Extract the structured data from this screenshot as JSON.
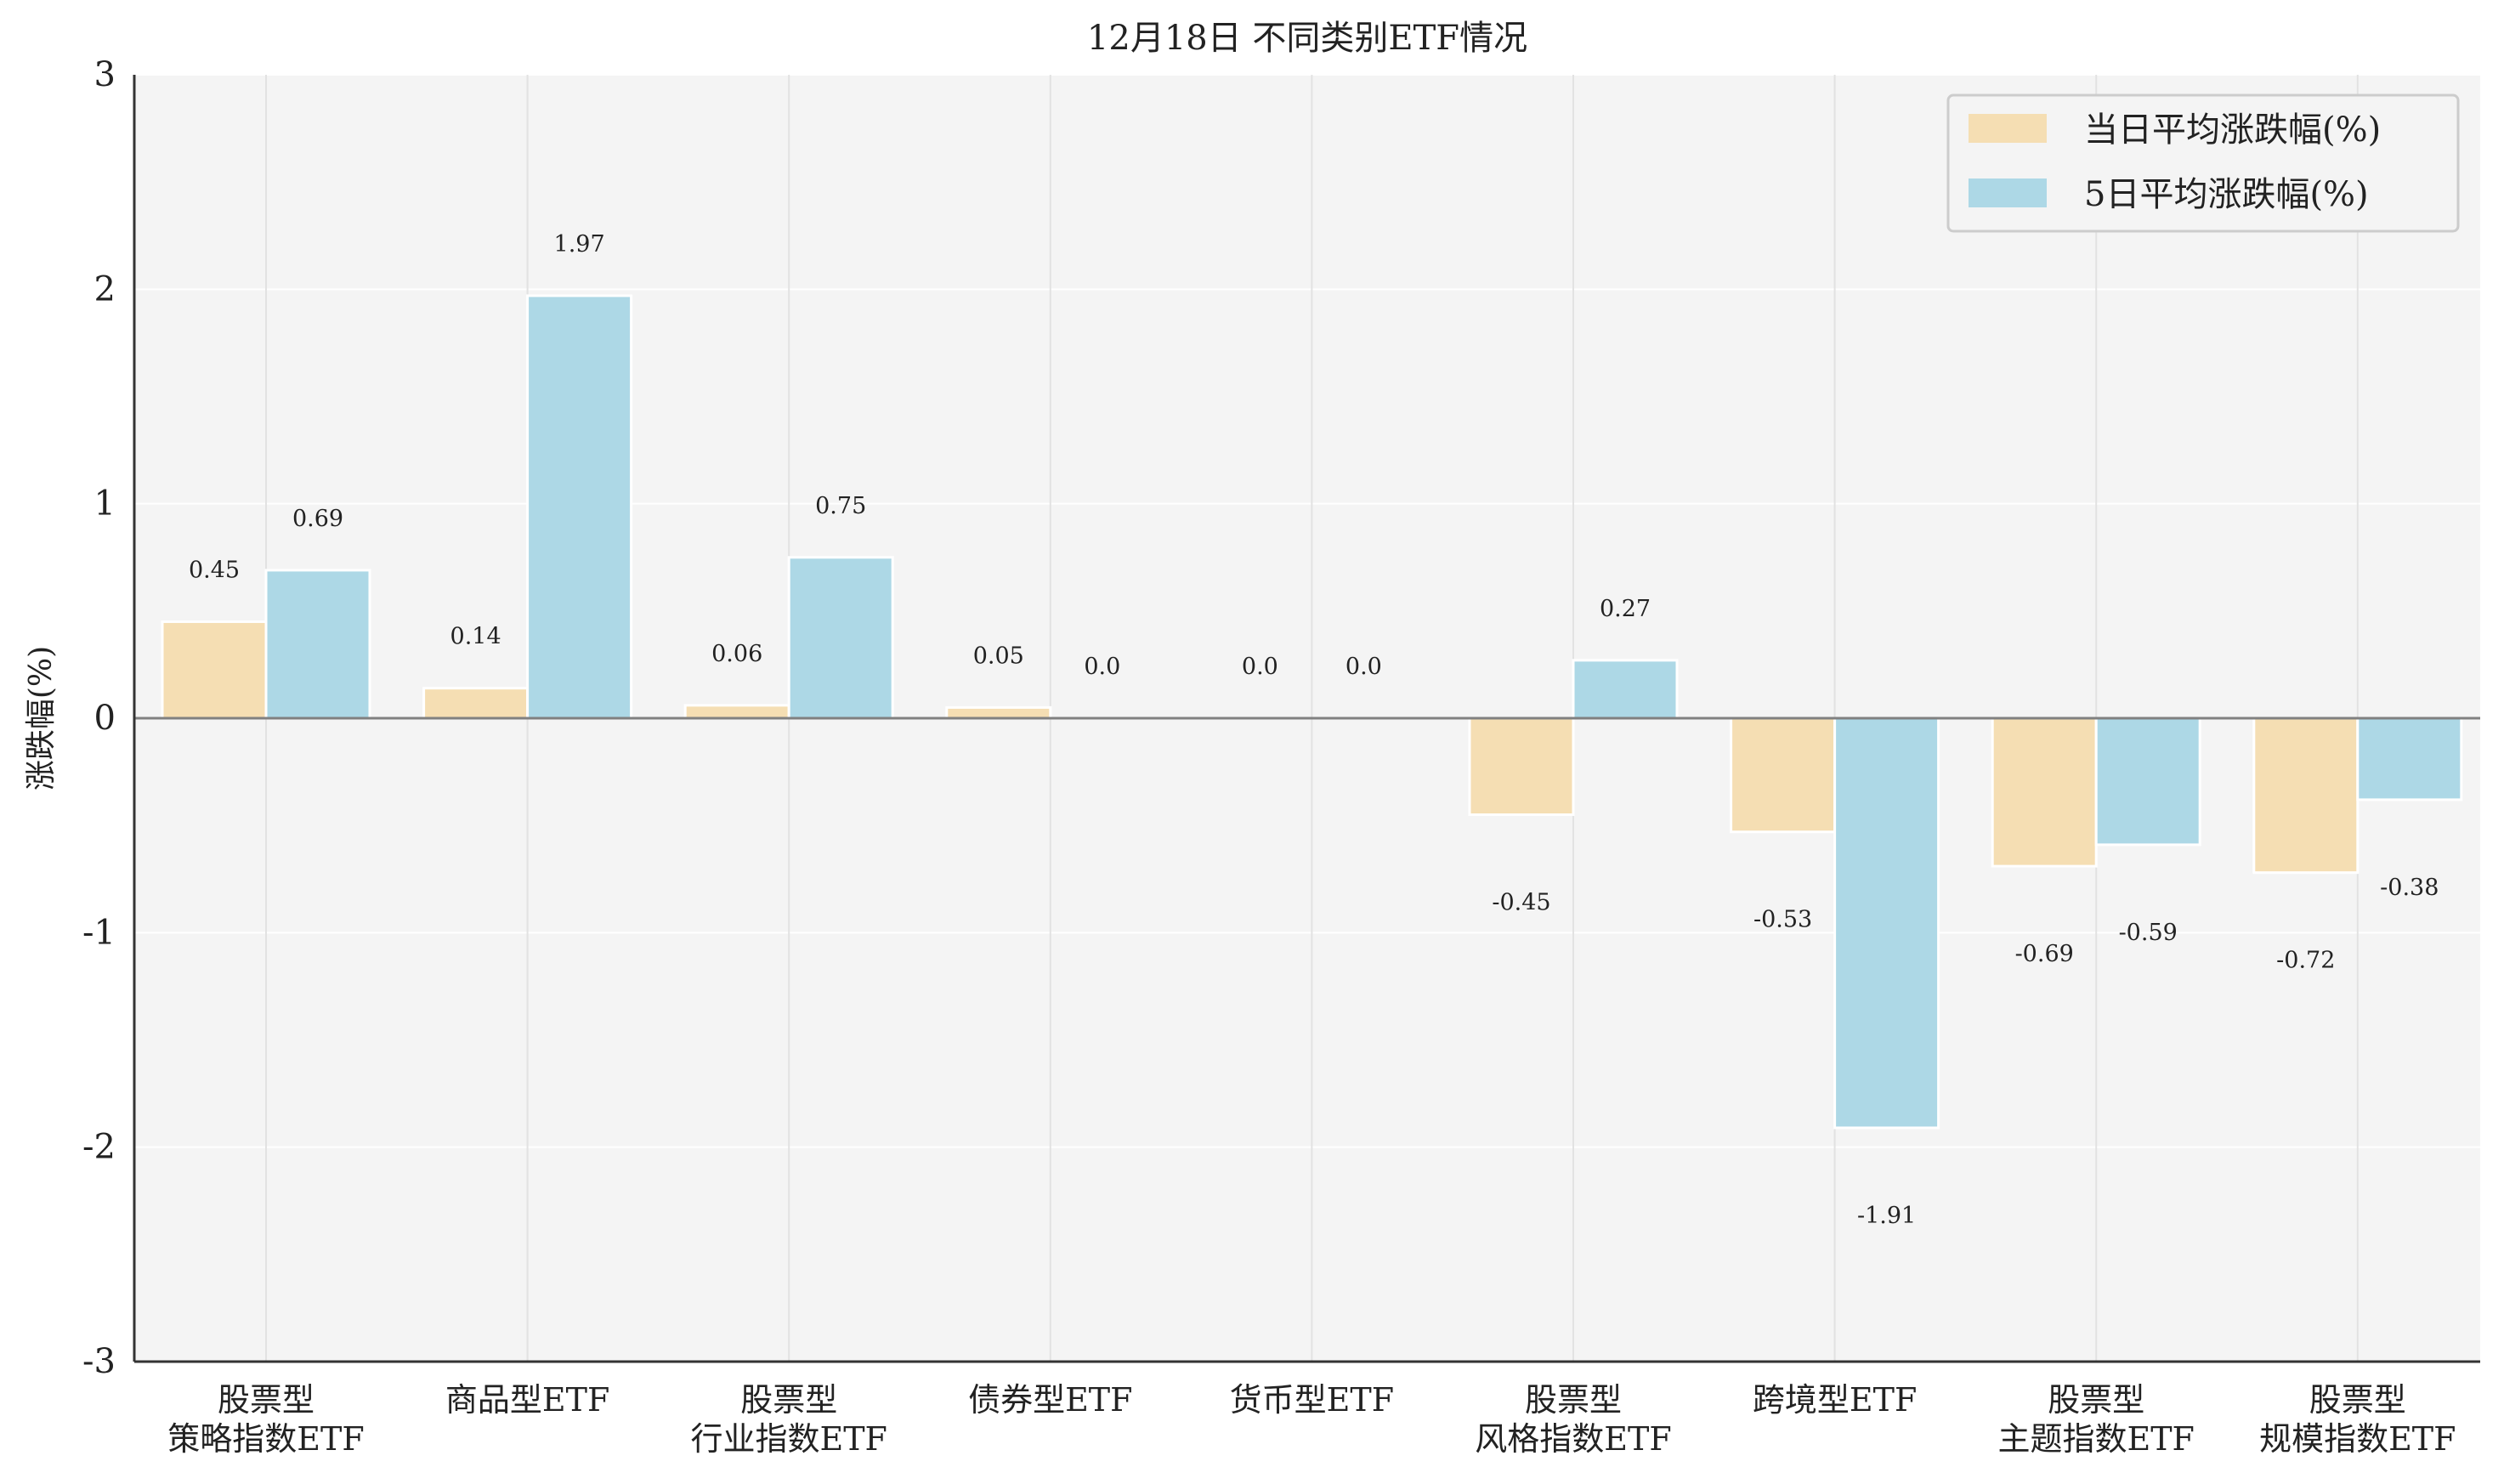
{
  "chart_data": {
    "type": "bar",
    "title": "12月18日 不同类别ETF情况",
    "ylabel": "涨跌幅(%)",
    "xlabel": "",
    "ylim": [
      -3,
      3
    ],
    "yticks": [
      "3",
      "2",
      "1",
      "0",
      "-1",
      "-2",
      "-3"
    ],
    "grid": true,
    "legend_position": "top-right",
    "categories": [
      [
        "股票型",
        "策略指数ETF"
      ],
      [
        "商品型ETF"
      ],
      [
        "股票型",
        "行业指数ETF"
      ],
      [
        "债券型ETF"
      ],
      [
        "货币型ETF"
      ],
      [
        "股票型",
        "风格指数ETF"
      ],
      [
        "跨境型ETF"
      ],
      [
        "股票型",
        "主题指数ETF"
      ],
      [
        "股票型",
        "规模指数ETF"
      ]
    ],
    "series": [
      {
        "name": "当日平均涨跌幅(%)",
        "color": "#f5deb3",
        "values": [
          0.45,
          0.14,
          0.06,
          0.05,
          0.0,
          -0.45,
          -0.53,
          -0.69,
          -0.72
        ],
        "labels": [
          "0.45",
          "0.14",
          "0.06",
          "0.05",
          "0.0",
          "-0.45",
          "-0.53",
          "-0.69",
          "-0.72"
        ]
      },
      {
        "name": "5日平均涨跌幅(%)",
        "color": "#add8e6",
        "values": [
          0.69,
          1.97,
          0.75,
          0.0,
          0.0,
          0.27,
          -1.91,
          -0.59,
          -0.38
        ],
        "labels": [
          "0.69",
          "1.97",
          "0.75",
          "0.0",
          "0.0",
          "0.27",
          "-1.91",
          "-0.59",
          "-0.38"
        ]
      }
    ]
  }
}
